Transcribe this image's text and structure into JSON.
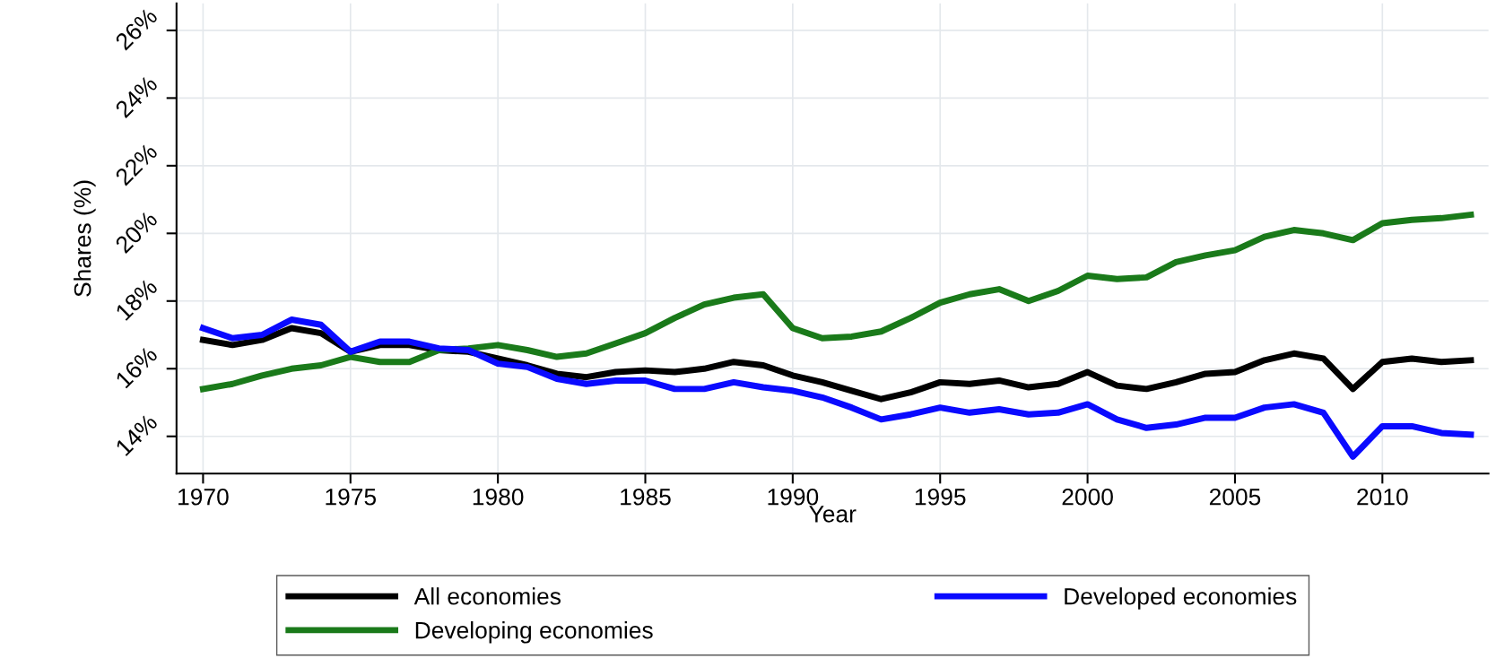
{
  "chart_data": {
    "type": "line",
    "xlabel": "Year",
    "ylabel": "Shares (%)",
    "x": [
      1970,
      1971,
      1972,
      1973,
      1974,
      1975,
      1976,
      1977,
      1978,
      1979,
      1980,
      1981,
      1982,
      1983,
      1984,
      1985,
      1986,
      1987,
      1988,
      1989,
      1990,
      1991,
      1992,
      1993,
      1994,
      1995,
      1996,
      1997,
      1998,
      1999,
      2000,
      2001,
      2002,
      2003,
      2004,
      2005,
      2006,
      2007,
      2008,
      2009,
      2010,
      2011,
      2012,
      2013
    ],
    "series": [
      {
        "name": "All economies",
        "color": "#000000",
        "values": [
          16.85,
          16.7,
          16.85,
          17.2,
          17.05,
          16.5,
          16.7,
          16.7,
          16.55,
          16.5,
          16.3,
          16.1,
          15.85,
          15.75,
          15.9,
          15.95,
          15.9,
          16.0,
          16.2,
          16.1,
          15.8,
          15.6,
          15.35,
          15.1,
          15.3,
          15.6,
          15.55,
          15.65,
          15.45,
          15.55,
          15.9,
          15.5,
          15.4,
          15.6,
          15.85,
          15.9,
          16.25,
          16.45,
          16.3,
          15.4,
          16.2,
          16.3,
          16.2,
          16.25
        ]
      },
      {
        "name": "Developing economies",
        "color": "#1a7a1a",
        "values": [
          15.4,
          15.55,
          15.8,
          16.0,
          16.1,
          16.35,
          16.2,
          16.2,
          16.55,
          16.6,
          16.7,
          16.55,
          16.35,
          16.45,
          16.75,
          17.05,
          17.5,
          17.9,
          18.1,
          18.2,
          17.2,
          16.9,
          16.95,
          17.1,
          17.5,
          17.95,
          18.2,
          18.35,
          18.0,
          18.3,
          18.75,
          18.65,
          18.7,
          19.15,
          19.35,
          19.5,
          19.9,
          20.1,
          20.0,
          19.8,
          20.3,
          20.4,
          20.45,
          20.55
        ]
      },
      {
        "name": "Developed economies",
        "color": "#0a0aff",
        "values": [
          17.2,
          16.9,
          17.0,
          17.45,
          17.3,
          16.5,
          16.8,
          16.8,
          16.6,
          16.55,
          16.15,
          16.05,
          15.7,
          15.55,
          15.65,
          15.65,
          15.4,
          15.4,
          15.6,
          15.45,
          15.35,
          15.15,
          14.85,
          14.5,
          14.65,
          14.85,
          14.7,
          14.8,
          14.65,
          14.7,
          14.95,
          14.5,
          14.25,
          14.35,
          14.55,
          14.55,
          14.85,
          14.95,
          14.7,
          13.4,
          14.3,
          14.3,
          14.1,
          14.05
        ]
      }
    ],
    "xlim": [
      1969.1,
      2013.6
    ],
    "xticks": [
      1970,
      1975,
      1980,
      1985,
      1990,
      1995,
      2000,
      2005,
      2010
    ],
    "ylim": [
      12.9,
      26.8
    ],
    "yticks": [
      {
        "value": 14,
        "label": "14%"
      },
      {
        "value": 16,
        "label": "16%"
      },
      {
        "value": 18,
        "label": "18%"
      },
      {
        "value": 20,
        "label": "20%"
      },
      {
        "value": 22,
        "label": "22%"
      },
      {
        "value": 24,
        "label": "24%"
      },
      {
        "value": 26,
        "label": "26%"
      }
    ],
    "grid": true,
    "legend": "bottom",
    "line_style": "solid",
    "marker": "none"
  }
}
